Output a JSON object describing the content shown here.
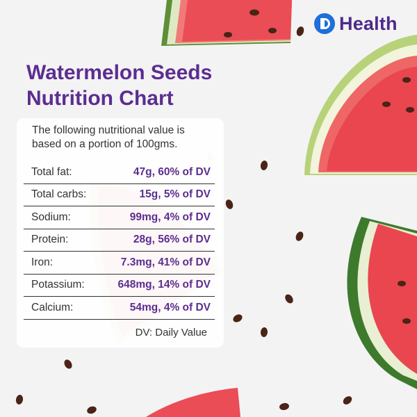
{
  "brand": {
    "name": "Health",
    "logo_icon": "b-circle-logo-icon",
    "accent": "#1e6fd9",
    "text_color": "#4e2a8a"
  },
  "title_line1": "Watermelon Seeds",
  "title_line2": "Nutrition Chart",
  "intro": "The following nutritional value is based on a portion of 100gms.",
  "rows": [
    {
      "label": "Total fat:",
      "value": "47g, 60% of DV"
    },
    {
      "label": "Total carbs:",
      "value": "15g, 5% of DV"
    },
    {
      "label": "Sodium:",
      "value": "99mg, 4% of DV"
    },
    {
      "label": "Protein:",
      "value": "28g, 56% of DV"
    },
    {
      "label": "Iron:",
      "value": "7.3mg, 41% of DV"
    },
    {
      "label": "Potassium:",
      "value": "648mg, 14% of DV"
    },
    {
      "label": "Calcium:",
      "value": "54mg, 4% of DV"
    }
  ],
  "note": "DV: Daily Value",
  "colors": {
    "title": "#5c2d91",
    "value": "#5c2d91",
    "watermelon_flesh": "#ec4a52",
    "rind": "#4f8a2e",
    "seed": "#4a2416"
  }
}
